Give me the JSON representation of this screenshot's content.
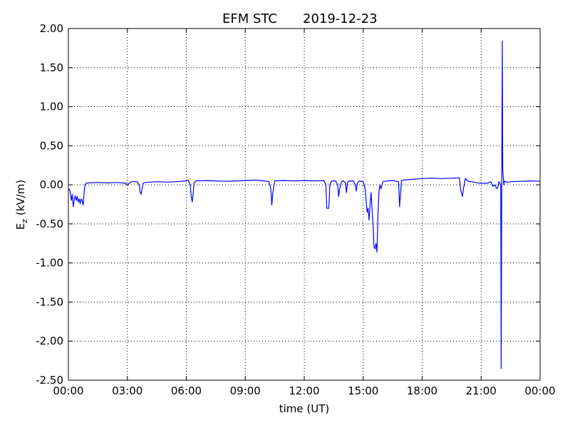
{
  "chart_data": {
    "type": "line",
    "title": "EFM STC",
    "date": "2019-12-23",
    "xlabel": "time (UT)",
    "ylabel": "E",
    "ylabel_subscript": "z",
    "ylabel_unit": " (kV/m)",
    "x_ticks": [
      "00:00",
      "03:00",
      "06:00",
      "09:00",
      "12:00",
      "15:00",
      "18:00",
      "21:00",
      "00:00"
    ],
    "y_ticks": [
      "2.00",
      "1.50",
      "1.00",
      "0.50",
      "0.00",
      "-0.50",
      "-1.00",
      "-1.50",
      "-2.00",
      "-2.50"
    ],
    "xlim_hours": [
      0,
      24
    ],
    "ylim": [
      -2.5,
      2.0
    ],
    "grid": true,
    "series": [
      {
        "color": "#0000ff",
        "points": [
          [
            0.0,
            -0.05
          ],
          [
            0.05,
            -0.06
          ],
          [
            0.1,
            -0.1
          ],
          [
            0.15,
            -0.2
          ],
          [
            0.2,
            -0.12
          ],
          [
            0.25,
            -0.28
          ],
          [
            0.3,
            -0.18
          ],
          [
            0.35,
            -0.14
          ],
          [
            0.4,
            -0.2
          ],
          [
            0.45,
            -0.15
          ],
          [
            0.5,
            -0.22
          ],
          [
            0.55,
            -0.18
          ],
          [
            0.6,
            -0.24
          ],
          [
            0.65,
            -0.18
          ],
          [
            0.7,
            -0.2
          ],
          [
            0.75,
            -0.26
          ],
          [
            0.8,
            -0.1
          ],
          [
            0.85,
            0.0
          ],
          [
            0.9,
            0.02
          ],
          [
            1.0,
            0.025
          ],
          [
            1.5,
            0.03
          ],
          [
            2.0,
            0.025
          ],
          [
            2.5,
            0.03
          ],
          [
            2.9,
            0.02
          ],
          [
            3.0,
            0.0
          ],
          [
            3.1,
            0.02
          ],
          [
            3.2,
            0.04
          ],
          [
            3.5,
            0.04
          ],
          [
            3.6,
            0.0
          ],
          [
            3.65,
            -0.1
          ],
          [
            3.7,
            -0.12
          ],
          [
            3.75,
            -0.05
          ],
          [
            3.8,
            0.02
          ],
          [
            3.9,
            0.03
          ],
          [
            4.5,
            0.04
          ],
          [
            5.0,
            0.035
          ],
          [
            5.5,
            0.04
          ],
          [
            6.0,
            0.05
          ],
          [
            6.1,
            0.06
          ],
          [
            6.2,
            0.0
          ],
          [
            6.25,
            -0.15
          ],
          [
            6.3,
            -0.22
          ],
          [
            6.35,
            -0.1
          ],
          [
            6.4,
            0.03
          ],
          [
            6.5,
            0.05
          ],
          [
            7.0,
            0.055
          ],
          [
            7.5,
            0.05
          ],
          [
            8.0,
            0.045
          ],
          [
            8.5,
            0.05
          ],
          [
            9.0,
            0.055
          ],
          [
            9.5,
            0.06
          ],
          [
            10.0,
            0.05
          ],
          [
            10.2,
            0.04
          ],
          [
            10.3,
            -0.05
          ],
          [
            10.35,
            -0.26
          ],
          [
            10.4,
            -0.1
          ],
          [
            10.5,
            0.05
          ],
          [
            11.0,
            0.055
          ],
          [
            11.5,
            0.05
          ],
          [
            12.0,
            0.055
          ],
          [
            12.5,
            0.05
          ],
          [
            13.0,
            0.055
          ],
          [
            13.1,
            0.0
          ],
          [
            13.15,
            -0.3
          ],
          [
            13.25,
            -0.3
          ],
          [
            13.3,
            0.0
          ],
          [
            13.4,
            0.05
          ],
          [
            13.6,
            0.05
          ],
          [
            13.7,
            0.0
          ],
          [
            13.75,
            -0.15
          ],
          [
            13.8,
            -0.05
          ],
          [
            13.9,
            0.04
          ],
          [
            14.0,
            0.05
          ],
          [
            14.1,
            0.02
          ],
          [
            14.15,
            -0.1
          ],
          [
            14.2,
            0.03
          ],
          [
            14.3,
            0.05
          ],
          [
            14.5,
            0.05
          ],
          [
            14.6,
            0.0
          ],
          [
            14.65,
            -0.08
          ],
          [
            14.7,
            0.02
          ],
          [
            14.8,
            0.05
          ],
          [
            15.0,
            0.04
          ],
          [
            15.1,
            -0.05
          ],
          [
            15.2,
            -0.35
          ],
          [
            15.25,
            -0.3
          ],
          [
            15.3,
            -0.45
          ],
          [
            15.35,
            -0.25
          ],
          [
            15.4,
            -0.1
          ],
          [
            15.5,
            -0.5
          ],
          [
            15.55,
            -0.8
          ],
          [
            15.6,
            -0.82
          ],
          [
            15.65,
            -0.75
          ],
          [
            15.7,
            -0.86
          ],
          [
            15.75,
            -0.4
          ],
          [
            15.8,
            -0.1
          ],
          [
            15.85,
            0.0
          ],
          [
            15.9,
            -0.05
          ],
          [
            16.0,
            0.04
          ],
          [
            16.2,
            0.05
          ],
          [
            16.5,
            0.055
          ],
          [
            16.8,
            0.04
          ],
          [
            16.85,
            -0.28
          ],
          [
            16.9,
            -0.1
          ],
          [
            16.95,
            0.05
          ],
          [
            17.0,
            0.06
          ],
          [
            17.5,
            0.07
          ],
          [
            18.0,
            0.08
          ],
          [
            18.5,
            0.085
          ],
          [
            19.0,
            0.08
          ],
          [
            19.5,
            0.085
          ],
          [
            19.9,
            0.09
          ],
          [
            19.95,
            -0.05
          ],
          [
            20.0,
            -0.1
          ],
          [
            20.05,
            -0.15
          ],
          [
            20.1,
            -0.05
          ],
          [
            20.2,
            0.08
          ],
          [
            20.3,
            0.05
          ],
          [
            20.5,
            0.04
          ],
          [
            20.7,
            0.03
          ],
          [
            21.0,
            0.02
          ],
          [
            21.3,
            0.02
          ],
          [
            21.5,
            0.04
          ],
          [
            21.6,
            -0.02
          ],
          [
            21.7,
            0.0
          ],
          [
            21.8,
            -0.05
          ],
          [
            21.85,
            -0.03
          ],
          [
            21.9,
            0.04
          ],
          [
            22.0,
            0.0
          ],
          [
            22.02,
            -2.35
          ],
          [
            22.05,
            0.02
          ],
          [
            22.08,
            1.84
          ],
          [
            22.1,
            0.2
          ],
          [
            22.15,
            0.0
          ],
          [
            22.2,
            0.05
          ],
          [
            22.3,
            0.03
          ],
          [
            22.5,
            0.04
          ],
          [
            23.0,
            0.045
          ],
          [
            23.5,
            0.05
          ],
          [
            24.0,
            0.045
          ]
        ]
      }
    ]
  }
}
